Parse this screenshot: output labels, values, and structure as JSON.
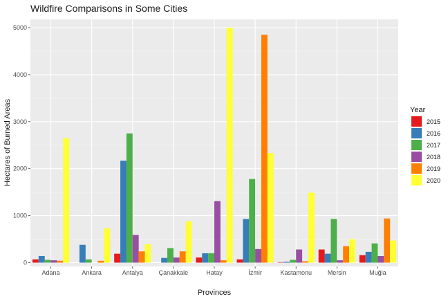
{
  "chart_data": {
    "type": "bar",
    "title": "Wildfire Comparisons in Some Cities",
    "xlabel": "Provinces",
    "ylabel": "Hectares of Burned Areas",
    "ylim": [
      0,
      5200
    ],
    "yticks": [
      0,
      1000,
      2000,
      3000,
      4000,
      5000
    ],
    "grid": true,
    "legend_position": "right",
    "legend_title": "Year",
    "categories": [
      "Adana",
      "Ankara",
      "Antalya",
      "Çanakkale",
      "Hatay",
      "İzmir",
      "Kastamonu",
      "Mersin",
      "Muğla"
    ],
    "series": [
      {
        "name": "2015",
        "color": "#E41A1C",
        "values": [
          70,
          0,
          190,
          0,
          110,
          70,
          10,
          280,
          160
        ]
      },
      {
        "name": "2016",
        "color": "#377EB8",
        "values": [
          140,
          380,
          2170,
          100,
          200,
          930,
          20,
          190,
          230
        ]
      },
      {
        "name": "2017",
        "color": "#4DAF4A",
        "values": [
          60,
          70,
          2750,
          310,
          200,
          1780,
          60,
          930,
          410
        ]
      },
      {
        "name": "2018",
        "color": "#984EA3",
        "values": [
          50,
          0,
          590,
          110,
          1310,
          290,
          280,
          50,
          140
        ]
      },
      {
        "name": "2019",
        "color": "#FF7F00",
        "values": [
          40,
          40,
          240,
          240,
          50,
          4850,
          30,
          350,
          940
        ]
      },
      {
        "name": "2020",
        "color": "#FFFF33",
        "values": [
          2650,
          730,
          390,
          880,
          5000,
          2330,
          1490,
          500,
          470
        ]
      }
    ]
  }
}
